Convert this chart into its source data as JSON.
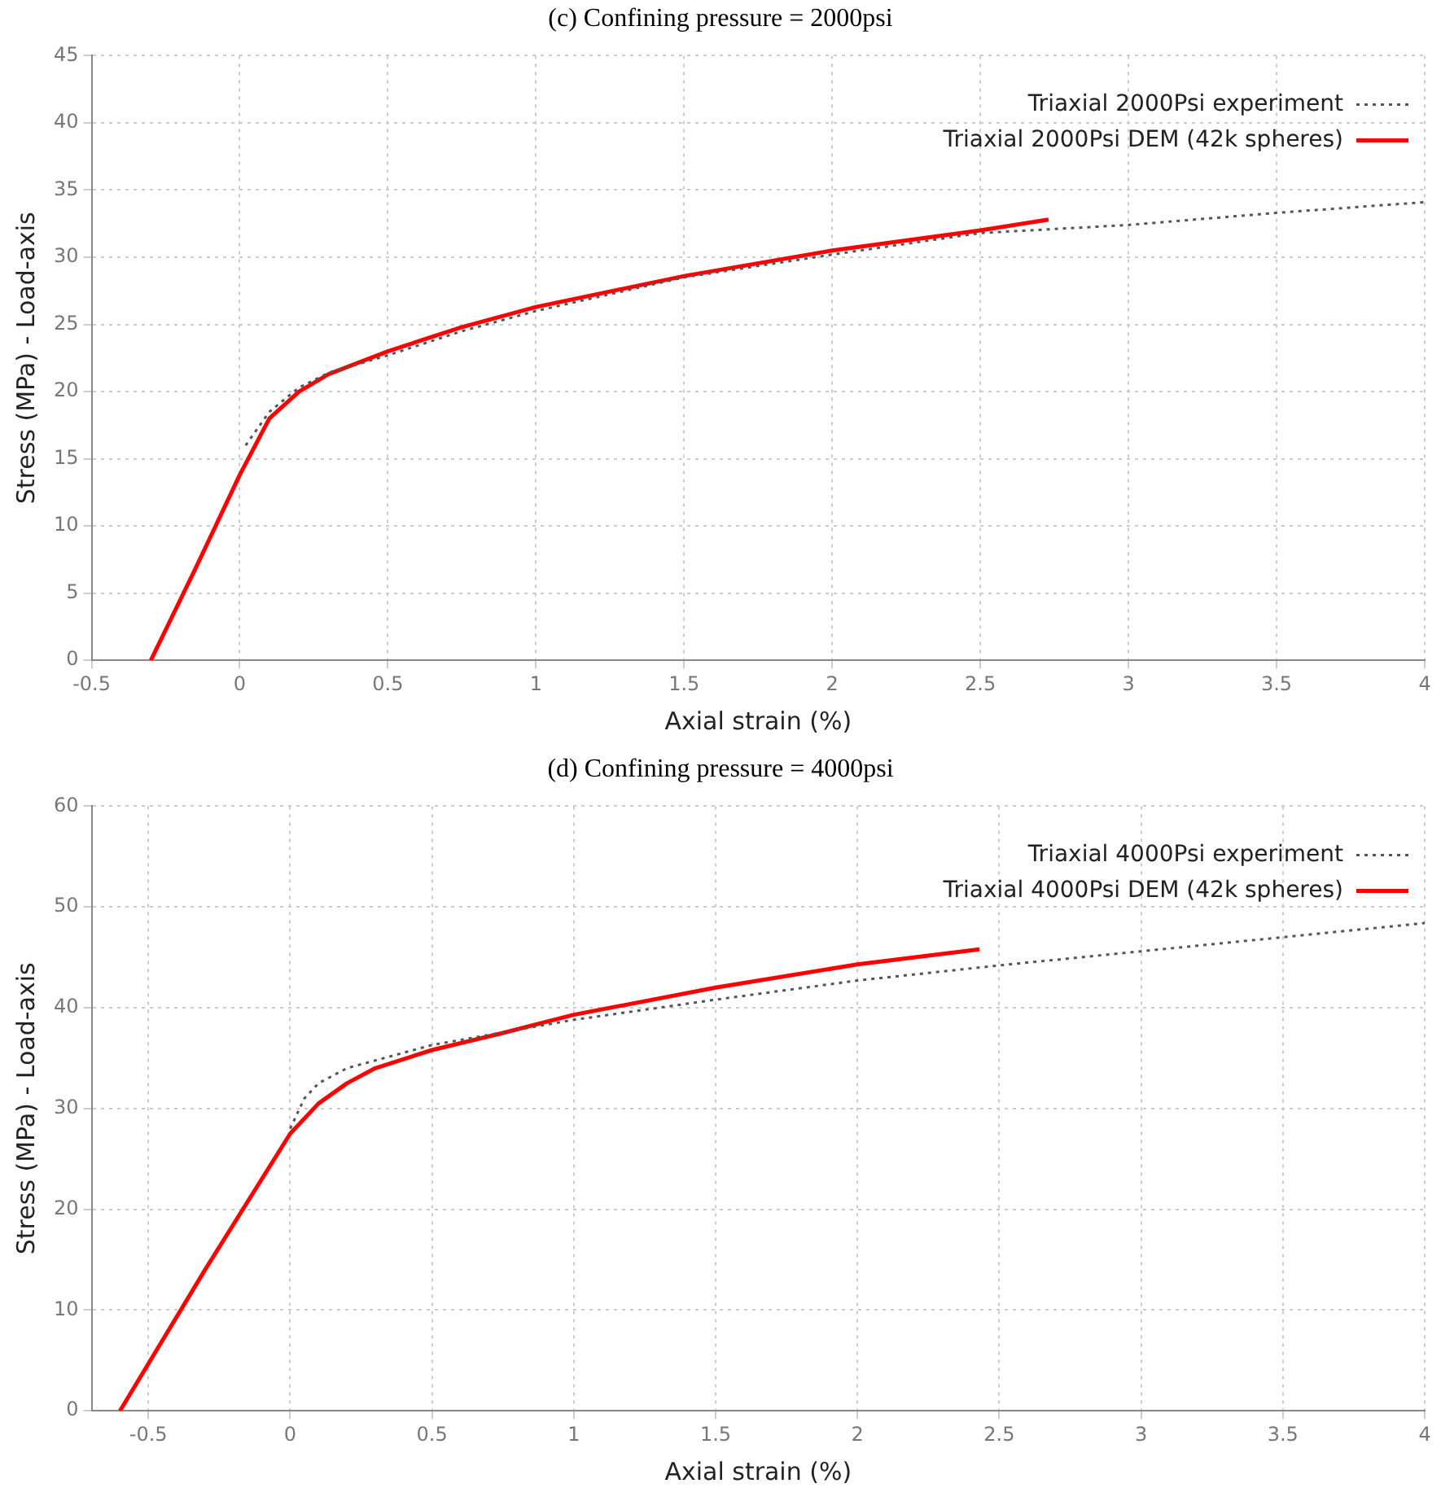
{
  "chart_data": [
    {
      "type": "line",
      "title": "(c) Confining pressure = 2000psi",
      "xlabel": "Axial strain (%)",
      "ylabel": "Stress (MPa) - Load-axis",
      "xlim": [
        -0.5,
        4
      ],
      "xticks": [
        {
          "value": -0.5,
          "label": "-0.5"
        },
        0,
        {
          "value": 0.5,
          "label": "0.5"
        },
        1,
        {
          "value": 1.5,
          "label": "1.5"
        },
        2,
        {
          "value": 2.5,
          "label": "2.5"
        },
        3,
        {
          "value": 3.5,
          "label": "3.5"
        },
        4
      ],
      "ylim": [
        0,
        45
      ],
      "yticks": [
        0,
        5,
        10,
        15,
        20,
        25,
        30,
        35,
        40,
        45
      ],
      "grid": true,
      "legend": "top right",
      "marker": "none",
      "series": [
        {
          "name": "Triaxial 2000Psi experiment",
          "color": "#555555",
          "line_style": "dotted",
          "x": [
            0.02,
            0.1,
            0.2,
            0.3,
            0.5,
            0.75,
            1,
            1.5,
            2,
            2.5,
            3,
            3.5,
            4
          ],
          "values": [
            16,
            18.5,
            20.3,
            21.4,
            22.7,
            24.5,
            26,
            28.5,
            30.2,
            31.8,
            32.4,
            33.3,
            34.1
          ]
        },
        {
          "name": "Triaxial 2000Psi DEM (42k spheres)",
          "color": "#ff0000",
          "line_style": "solid",
          "x": [
            -0.3,
            -0.15,
            0,
            0.1,
            0.2,
            0.3,
            0.5,
            0.75,
            1,
            1.5,
            2,
            2.5,
            2.73
          ],
          "values": [
            0,
            6.8,
            13.8,
            18,
            20,
            21.3,
            23,
            24.8,
            26.3,
            28.6,
            30.5,
            32,
            32.8
          ]
        }
      ]
    },
    {
      "type": "line",
      "title": "(d) Confining pressure = 4000psi",
      "xlabel": "Axial strain (%)",
      "ylabel": "Stress (MPa) - Load-axis",
      "xlim": [
        -0.7,
        4
      ],
      "xticks": [
        {
          "value": -0.5,
          "label": "-0.5"
        },
        0,
        {
          "value": 0.5,
          "label": "0.5"
        },
        1,
        {
          "value": 1.5,
          "label": "1.5"
        },
        2,
        {
          "value": 2.5,
          "label": "2.5"
        },
        3,
        {
          "value": 3.5,
          "label": "3.5"
        },
        4
      ],
      "ylim": [
        0,
        60
      ],
      "yticks": [
        0,
        10,
        20,
        30,
        40,
        50,
        60
      ],
      "grid": true,
      "legend": "top right",
      "marker": "none",
      "series": [
        {
          "name": "Triaxial 4000Psi experiment",
          "color": "#555555",
          "line_style": "dotted",
          "x": [
            0,
            0.05,
            0.1,
            0.2,
            0.5,
            1,
            1.5,
            2,
            2.5,
            3,
            3.5,
            4
          ],
          "values": [
            28,
            31,
            32.5,
            34,
            36.3,
            38.8,
            40.8,
            42.7,
            44.2,
            45.6,
            47,
            48.4
          ]
        },
        {
          "name": "Triaxial 4000Psi DEM (42k spheres)",
          "color": "#ff0000",
          "line_style": "solid",
          "x": [
            -0.6,
            -0.3,
            0,
            0.1,
            0.2,
            0.3,
            0.5,
            0.75,
            1,
            1.5,
            2,
            2.43
          ],
          "values": [
            0,
            14,
            27.5,
            30.5,
            32.5,
            34,
            35.8,
            37.5,
            39.3,
            42,
            44.3,
            45.8
          ]
        }
      ]
    }
  ]
}
